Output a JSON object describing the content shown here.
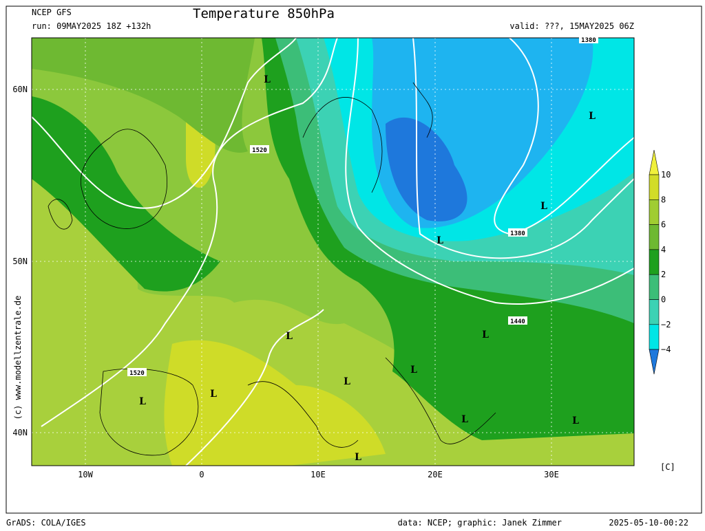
{
  "header": {
    "model": "NCEP GFS",
    "run": "run: 09MAY2025 18Z +132h",
    "title": "Temperature 850hPa",
    "valid": "valid: ???, 15MAY2025 06Z"
  },
  "axes": {
    "lat_labels": [
      "60N",
      "50N",
      "40N"
    ],
    "lon_labels": [
      "10W",
      "0",
      "10E",
      "20E",
      "30E"
    ]
  },
  "colorbar": {
    "labels": [
      "10",
      "8",
      "6",
      "4",
      "2",
      "0",
      "−2",
      "−4"
    ],
    "unit": "[C]"
  },
  "side_text": "(c)  www.modellzentrale.de",
  "map_labels": [
    "1520",
    "1520",
    "1380",
    "1380",
    "1440",
    "L",
    "L",
    "L",
    "L",
    "L",
    "L",
    "L",
    "L",
    "L",
    "L",
    "L",
    "L",
    "L"
  ],
  "footer": {
    "left": "GrADS: COLA/IGES",
    "center": "data: NCEP; graphic: Janek Zimmer",
    "right": "2025-05-10-00:22"
  }
}
